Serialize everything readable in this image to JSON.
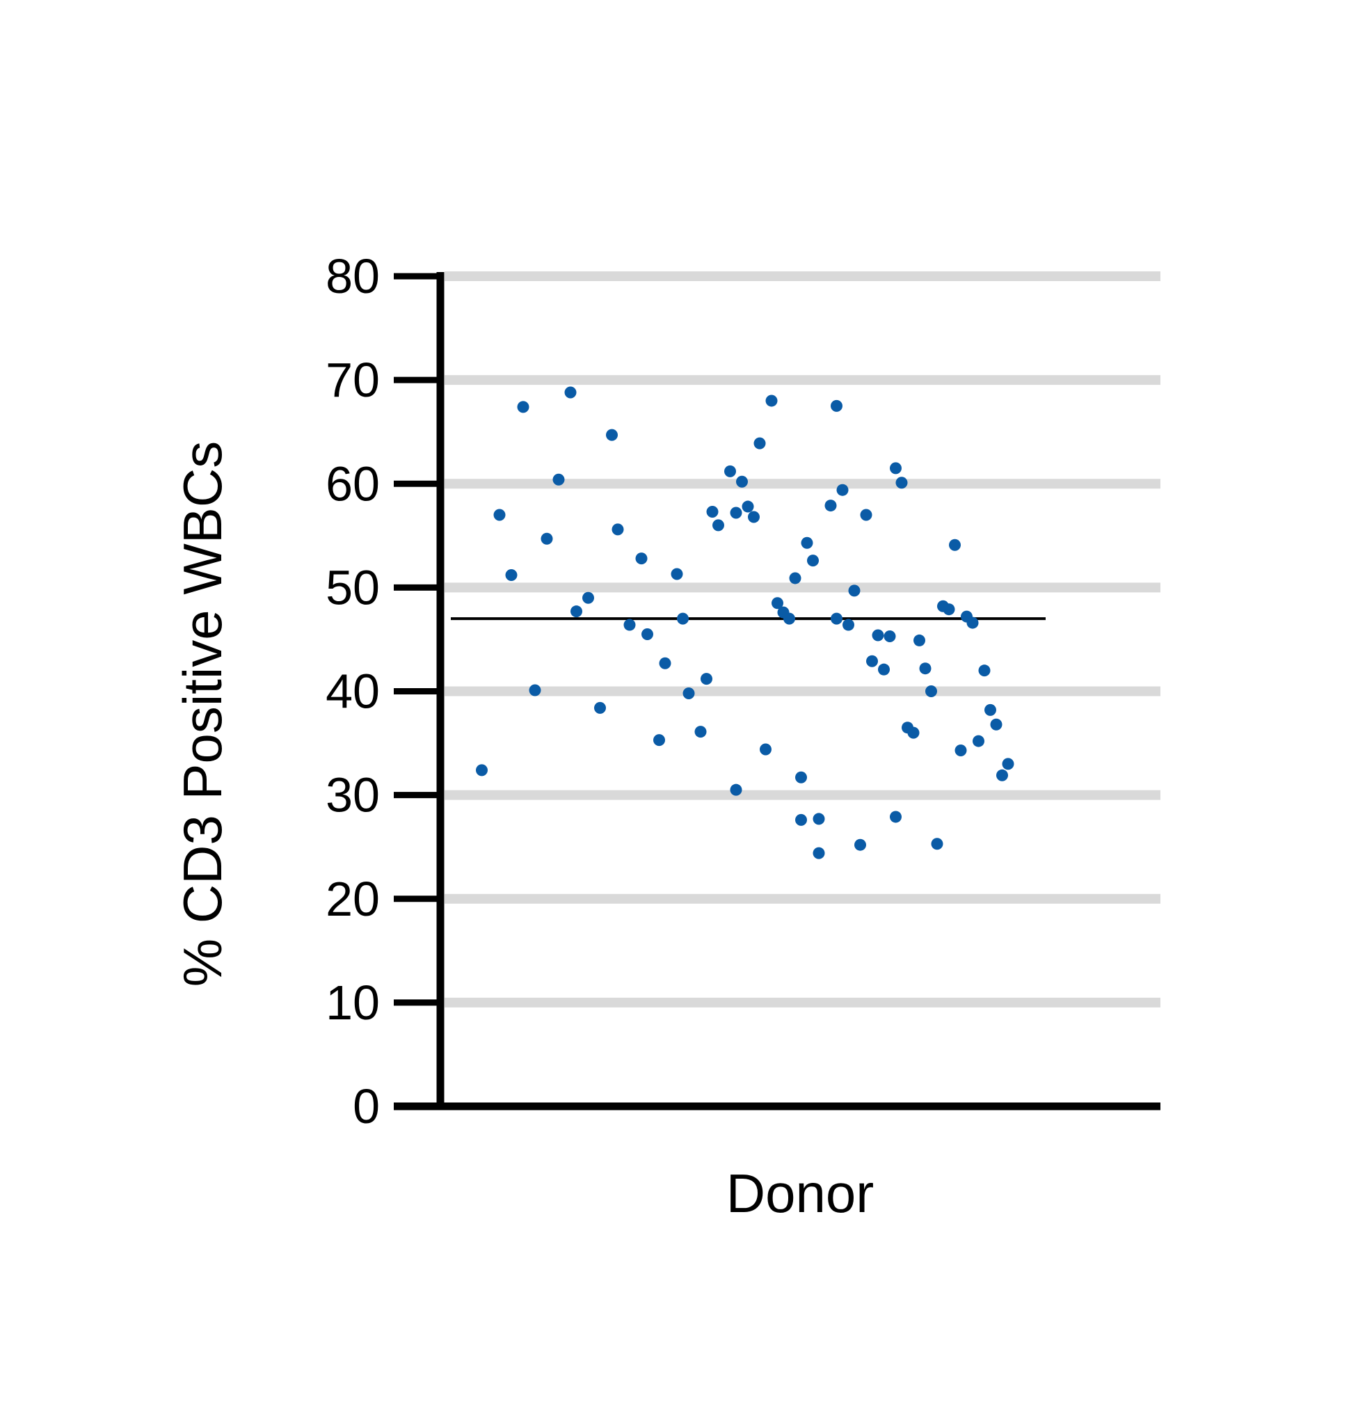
{
  "chart_data": {
    "type": "scatter",
    "title": "",
    "xlabel": "Donor",
    "ylabel": "% CD3 Positive WBCs",
    "ylim": [
      0,
      80
    ],
    "yticks": [
      0,
      10,
      20,
      30,
      40,
      50,
      60,
      70,
      80
    ],
    "grid": true,
    "legend": "none",
    "colors": {
      "points": "#0a5ba6",
      "grid": "#d9d9d9",
      "axis": "#000000",
      "mean_line": "#000000"
    },
    "mean": 47.0,
    "series": [
      {
        "x": [
          0.05,
          0.08,
          0.1,
          0.12,
          0.14,
          0.16,
          0.18,
          0.2,
          0.21,
          0.23,
          0.25,
          0.27,
          0.28,
          0.3,
          0.32,
          0.33,
          0.35,
          0.36,
          0.38,
          0.39,
          0.4,
          0.42,
          0.43,
          0.44,
          0.45,
          0.47,
          0.48,
          0.48,
          0.49,
          0.5,
          0.51,
          0.52,
          0.53,
          0.54,
          0.55,
          0.56,
          0.57,
          0.58,
          0.59,
          0.59,
          0.6,
          0.61,
          0.62,
          0.62,
          0.64,
          0.65,
          0.65,
          0.66,
          0.67,
          0.68,
          0.69,
          0.7,
          0.71,
          0.72,
          0.73,
          0.74,
          0.75,
          0.75,
          0.76,
          0.77,
          0.78,
          0.79,
          0.8,
          0.81,
          0.82,
          0.83,
          0.84,
          0.85,
          0.86,
          0.87,
          0.88,
          0.89,
          0.9,
          0.91,
          0.92,
          0.93,
          0.94
        ],
        "y": [
          32.4,
          57.0,
          51.2,
          67.4,
          40.1,
          54.7,
          60.4,
          68.8,
          47.7,
          49.0,
          38.4,
          64.7,
          55.6,
          46.4,
          52.8,
          45.5,
          35.3,
          42.7,
          51.3,
          47.0,
          39.8,
          36.1,
          41.2,
          57.3,
          56.0,
          61.2,
          57.2,
          30.5,
          60.2,
          57.8,
          56.8,
          63.9,
          34.4,
          68.0,
          48.5,
          47.6,
          47.0,
          50.9,
          31.7,
          27.6,
          54.3,
          52.6,
          27.7,
          24.4,
          57.9,
          67.5,
          47.0,
          59.4,
          46.4,
          49.7,
          25.2,
          57.0,
          42.9,
          45.4,
          42.1,
          45.3,
          27.9,
          61.5,
          60.1,
          36.5,
          36.0,
          44.9,
          42.2,
          40.0,
          25.3,
          48.2,
          47.9,
          54.1,
          34.3,
          47.2,
          46.6,
          35.2,
          42.0,
          38.2,
          36.8,
          31.9,
          33.0
        ]
      }
    ]
  }
}
